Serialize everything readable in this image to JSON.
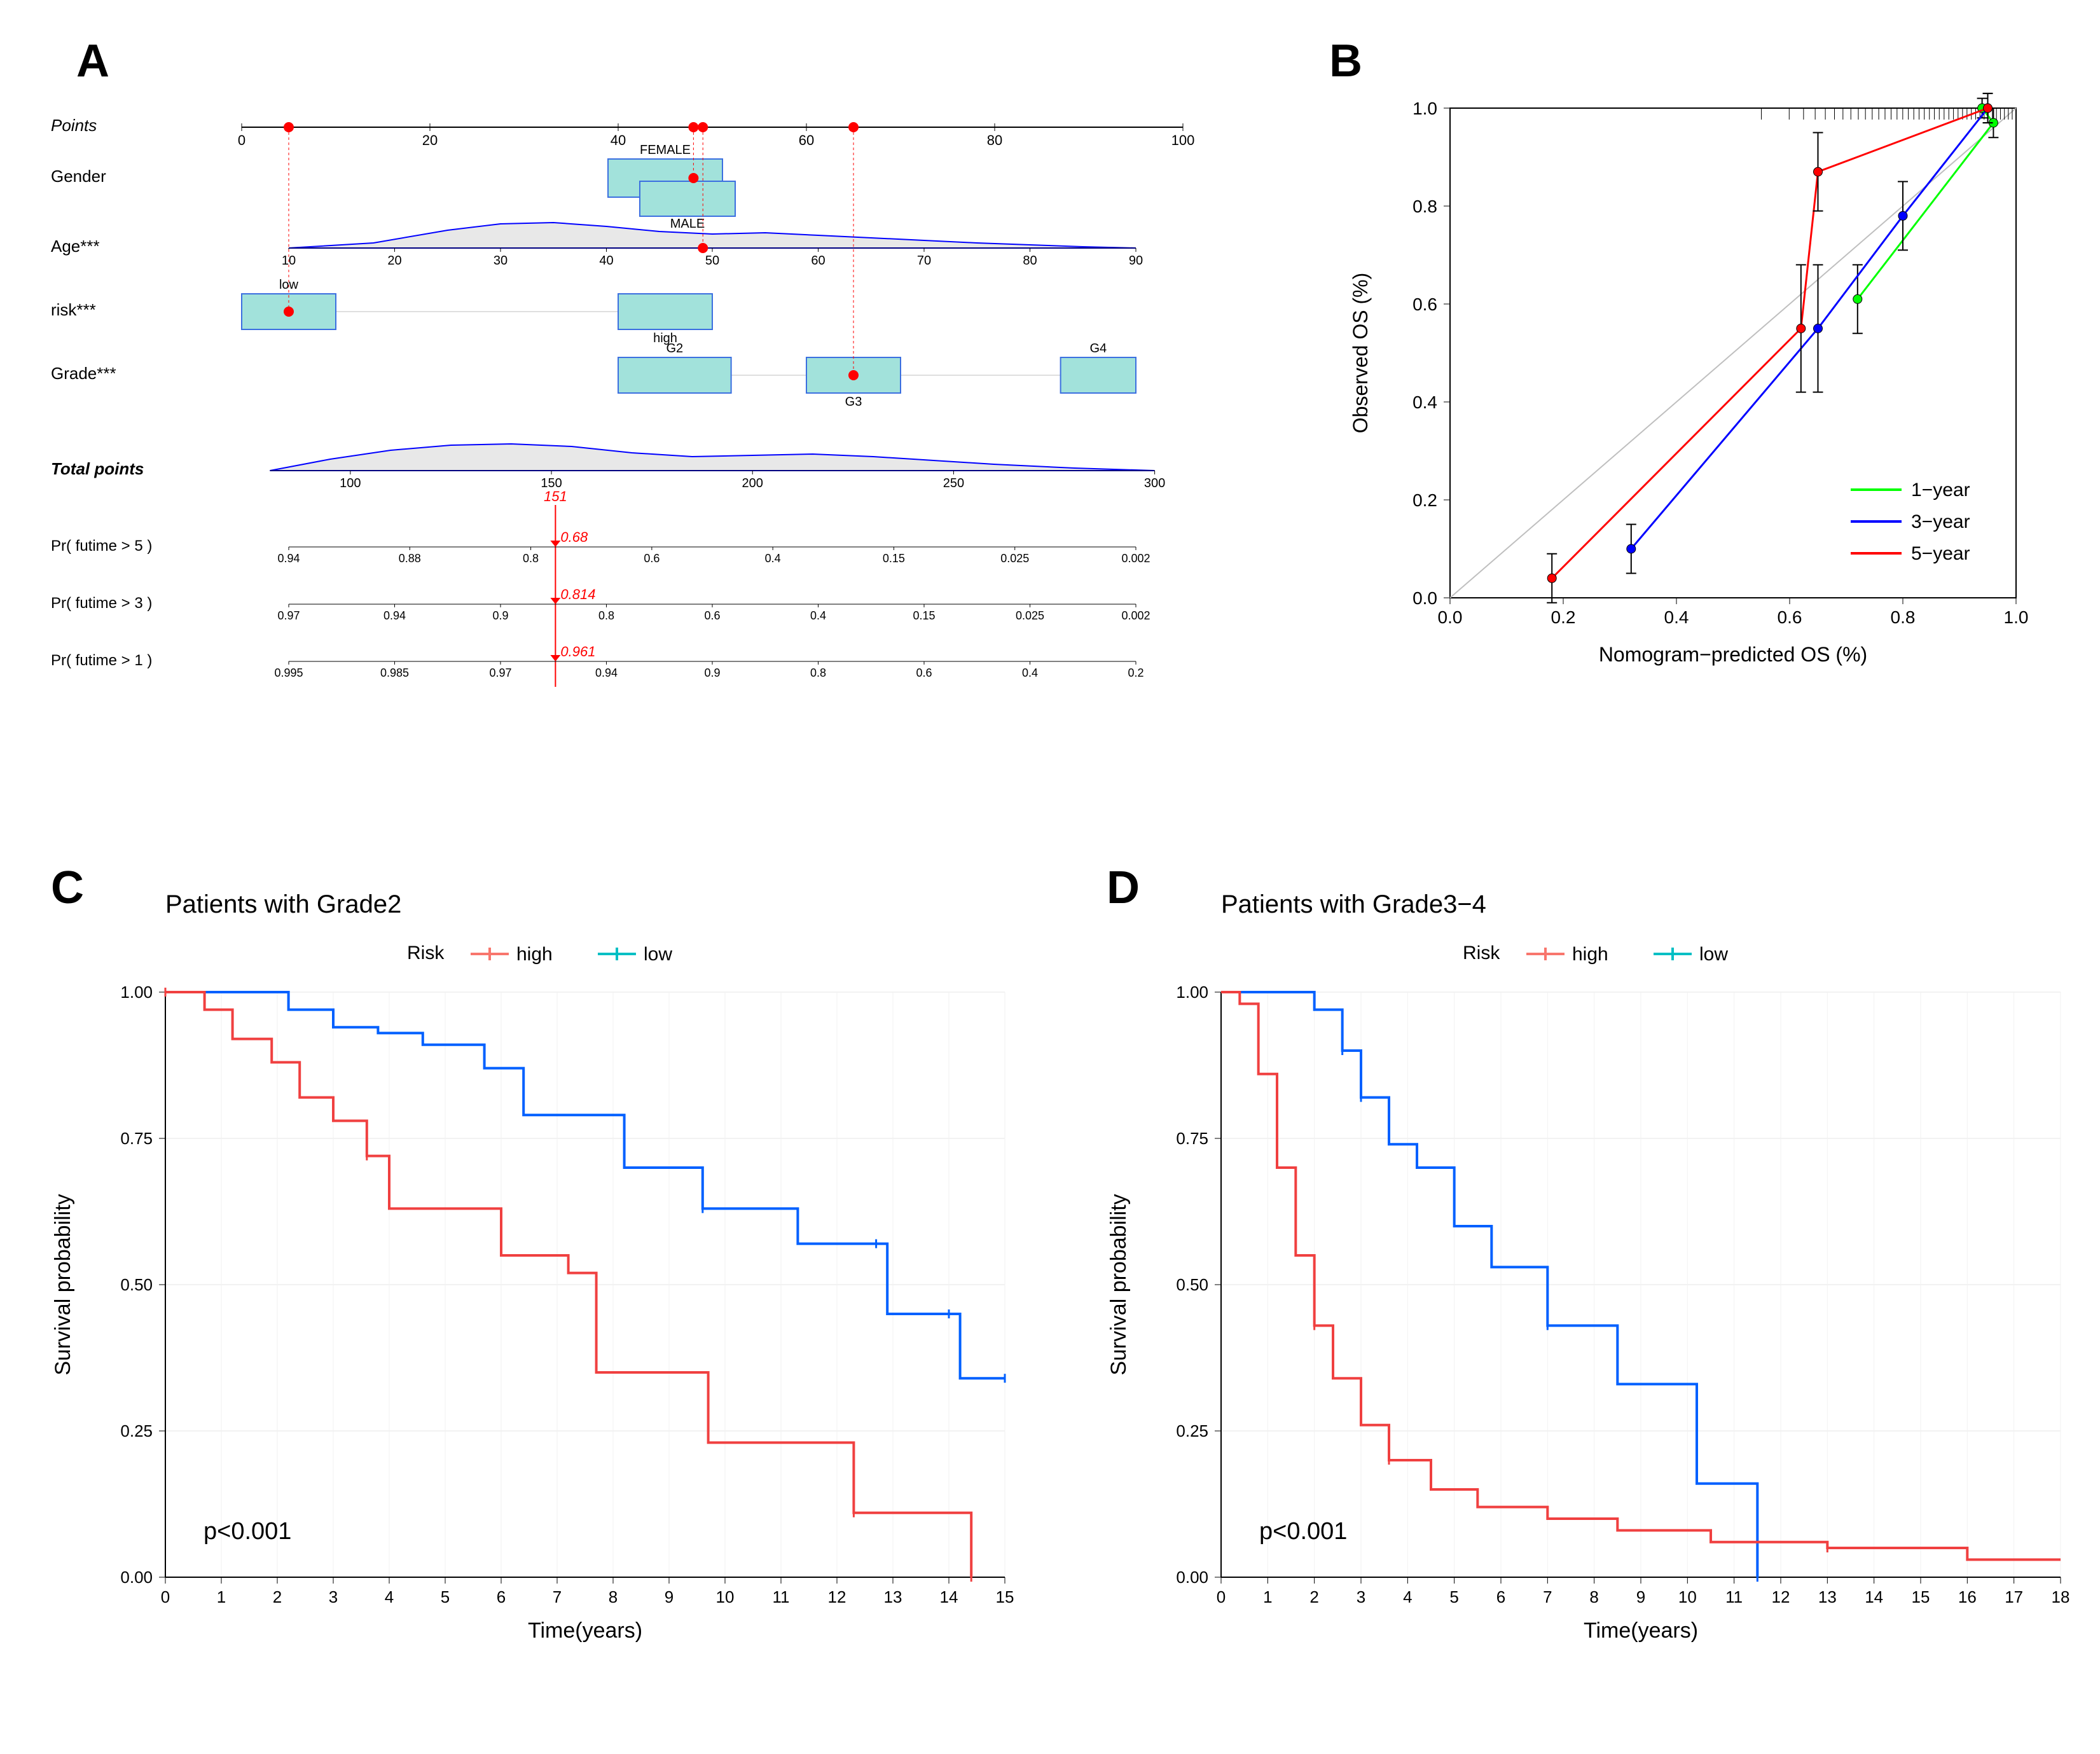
{
  "panel_labels": {
    "A": "A",
    "B": "B",
    "C": "C",
    "D": "D"
  },
  "colors": {
    "red": "#ff0000",
    "blue": "#0000ff",
    "green": "#00ff00",
    "km_red": "#f8766d",
    "km_blue": "#00bfc4",
    "teal": "#a2e2db",
    "teal_border": "#3b6fe0",
    "gray_fill": "#e8e8e8",
    "gray_line": "#bfbfbf",
    "diag": "#bfbfbf",
    "black": "#000000",
    "bg": "#ffffff",
    "km_red_line": "#f04040",
    "km_blue_line": "#0060ff"
  },
  "panelA": {
    "points": {
      "label": "Points",
      "ticks": [
        0,
        20,
        40,
        60,
        80,
        100
      ]
    },
    "gender": {
      "label": "Gender",
      "top": "FEMALE",
      "bottom": "MALE"
    },
    "age": {
      "label": "Age***",
      "ticks": [
        10,
        20,
        30,
        40,
        50,
        60,
        70,
        80,
        90
      ]
    },
    "risk": {
      "label": "risk***",
      "low": "low",
      "high": "high"
    },
    "grade": {
      "label": "Grade***",
      "g2": "G2",
      "g3": "G3",
      "g4": "G4"
    },
    "total": {
      "label": "Total points",
      "ticks": [
        100,
        150,
        200,
        250,
        300
      ],
      "value": 151
    },
    "probs": [
      {
        "label": "Pr( futime > 5 )",
        "ticks": [
          "0.94",
          "0.88",
          "0.8",
          "0.6",
          "0.4",
          "0.15",
          "0.025",
          "0.002"
        ],
        "value": 0.68
      },
      {
        "label": "Pr( futime > 3 )",
        "ticks": [
          "0.97",
          "0.94",
          "0.9",
          "0.8",
          "0.6",
          "0.4",
          "0.15",
          "0.025",
          "0.002"
        ],
        "value": 0.814
      },
      {
        "label": "Pr( futime > 1 )",
        "ticks": [
          "0.995",
          "0.985",
          "0.97",
          "0.94",
          "0.9",
          "0.8",
          "0.6",
          "0.4",
          "0.2"
        ],
        "value": 0.961
      }
    ],
    "patient": {
      "gender_pos": 48,
      "age_pos": 49,
      "risk_pos": 5,
      "grade_pos": 65
    }
  },
  "panelB": {
    "xlabel": "Nomogram−predicted OS (%)",
    "ylabel": "Observed OS (%)",
    "ticks": [
      0.0,
      0.2,
      0.4,
      0.6,
      0.8,
      1.0
    ],
    "legend": [
      {
        "label": "1−year",
        "color": "green"
      },
      {
        "label": "3−year",
        "color": "blue"
      },
      {
        "label": "5−year",
        "color": "red"
      }
    ],
    "series": {
      "year1": [
        {
          "x": 0.94,
          "y": 1.0,
          "e": 0.02
        },
        {
          "x": 0.96,
          "y": 0.97,
          "e": 0.03
        },
        {
          "x": 0.72,
          "y": 0.61,
          "e": 0.07
        }
      ],
      "year3": [
        {
          "x": 0.95,
          "y": 1.0,
          "e": 0.03
        },
        {
          "x": 0.8,
          "y": 0.78,
          "e": 0.07
        },
        {
          "x": 0.65,
          "y": 0.55,
          "e": 0.13
        },
        {
          "x": 0.32,
          "y": 0.1,
          "e": 0.05
        }
      ],
      "year5": [
        {
          "x": 0.95,
          "y": 1.0,
          "e": 0.03
        },
        {
          "x": 0.65,
          "y": 0.87,
          "e": 0.08
        },
        {
          "x": 0.62,
          "y": 0.55,
          "e": 0.13
        },
        {
          "x": 0.18,
          "y": 0.04,
          "e": 0.05
        }
      ]
    }
  },
  "km": {
    "xlabel": "Time(years)",
    "ylabel": "Survival probability",
    "yticks": [
      0.0,
      0.25,
      0.5,
      0.75,
      1.0
    ],
    "legend_title": "Risk",
    "legend": [
      {
        "label": "high",
        "color": "km_red"
      },
      {
        "label": "low",
        "color": "km_blue"
      }
    ],
    "pval": "p<0.001"
  },
  "panelC": {
    "title": "Patients with Grade2",
    "xticks": [
      0,
      1,
      2,
      3,
      4,
      5,
      6,
      7,
      8,
      9,
      10,
      11,
      12,
      13,
      14,
      15
    ],
    "high": [
      [
        0,
        1.0
      ],
      [
        0.7,
        0.97
      ],
      [
        1.2,
        0.92
      ],
      [
        1.9,
        0.88
      ],
      [
        2.4,
        0.82
      ],
      [
        3.0,
        0.78
      ],
      [
        3.6,
        0.72
      ],
      [
        4.0,
        0.63
      ],
      [
        5.4,
        0.63
      ],
      [
        6.0,
        0.55
      ],
      [
        7.2,
        0.52
      ],
      [
        7.7,
        0.35
      ],
      [
        8.8,
        0.35
      ],
      [
        9.7,
        0.23
      ],
      [
        11.8,
        0.23
      ],
      [
        12.3,
        0.11
      ],
      [
        14.2,
        0.11
      ],
      [
        14.4,
        0.0
      ]
    ],
    "low": [
      [
        0,
        1.0
      ],
      [
        1.2,
        1.0
      ],
      [
        2.2,
        0.97
      ],
      [
        3.0,
        0.94
      ],
      [
        3.8,
        0.93
      ],
      [
        4.6,
        0.91
      ],
      [
        5.7,
        0.87
      ],
      [
        6.4,
        0.79
      ],
      [
        7.8,
        0.79
      ],
      [
        8.2,
        0.7
      ],
      [
        9.2,
        0.7
      ],
      [
        9.6,
        0.63
      ],
      [
        10.8,
        0.63
      ],
      [
        11.3,
        0.57
      ],
      [
        12.7,
        0.57
      ],
      [
        12.9,
        0.45
      ],
      [
        14.0,
        0.45
      ],
      [
        14.2,
        0.34
      ],
      [
        15.0,
        0.34
      ]
    ]
  },
  "panelD": {
    "title": "Patients with Grade3−4",
    "xticks": [
      0,
      1,
      2,
      3,
      4,
      5,
      6,
      7,
      8,
      9,
      10,
      11,
      12,
      13,
      14,
      15,
      16,
      17,
      18
    ],
    "high": [
      [
        0,
        1.0
      ],
      [
        0.4,
        0.98
      ],
      [
        0.8,
        0.86
      ],
      [
        1.2,
        0.7
      ],
      [
        1.6,
        0.55
      ],
      [
        2.0,
        0.43
      ],
      [
        2.4,
        0.34
      ],
      [
        3.0,
        0.26
      ],
      [
        3.6,
        0.2
      ],
      [
        4.5,
        0.15
      ],
      [
        5.5,
        0.12
      ],
      [
        7.0,
        0.1
      ],
      [
        8.5,
        0.08
      ],
      [
        10.5,
        0.06
      ],
      [
        13.0,
        0.05
      ],
      [
        16.0,
        0.03
      ],
      [
        18.0,
        0.03
      ]
    ],
    "low": [
      [
        0,
        1.0
      ],
      [
        1.4,
        1.0
      ],
      [
        2.0,
        0.97
      ],
      [
        2.6,
        0.9
      ],
      [
        3.0,
        0.82
      ],
      [
        3.6,
        0.74
      ],
      [
        4.2,
        0.7
      ],
      [
        5.0,
        0.6
      ],
      [
        5.8,
        0.53
      ],
      [
        6.4,
        0.53
      ],
      [
        7.0,
        0.43
      ],
      [
        8.0,
        0.43
      ],
      [
        8.5,
        0.33
      ],
      [
        10.0,
        0.33
      ],
      [
        10.2,
        0.16
      ],
      [
        11.3,
        0.16
      ],
      [
        11.5,
        0.0
      ]
    ]
  }
}
